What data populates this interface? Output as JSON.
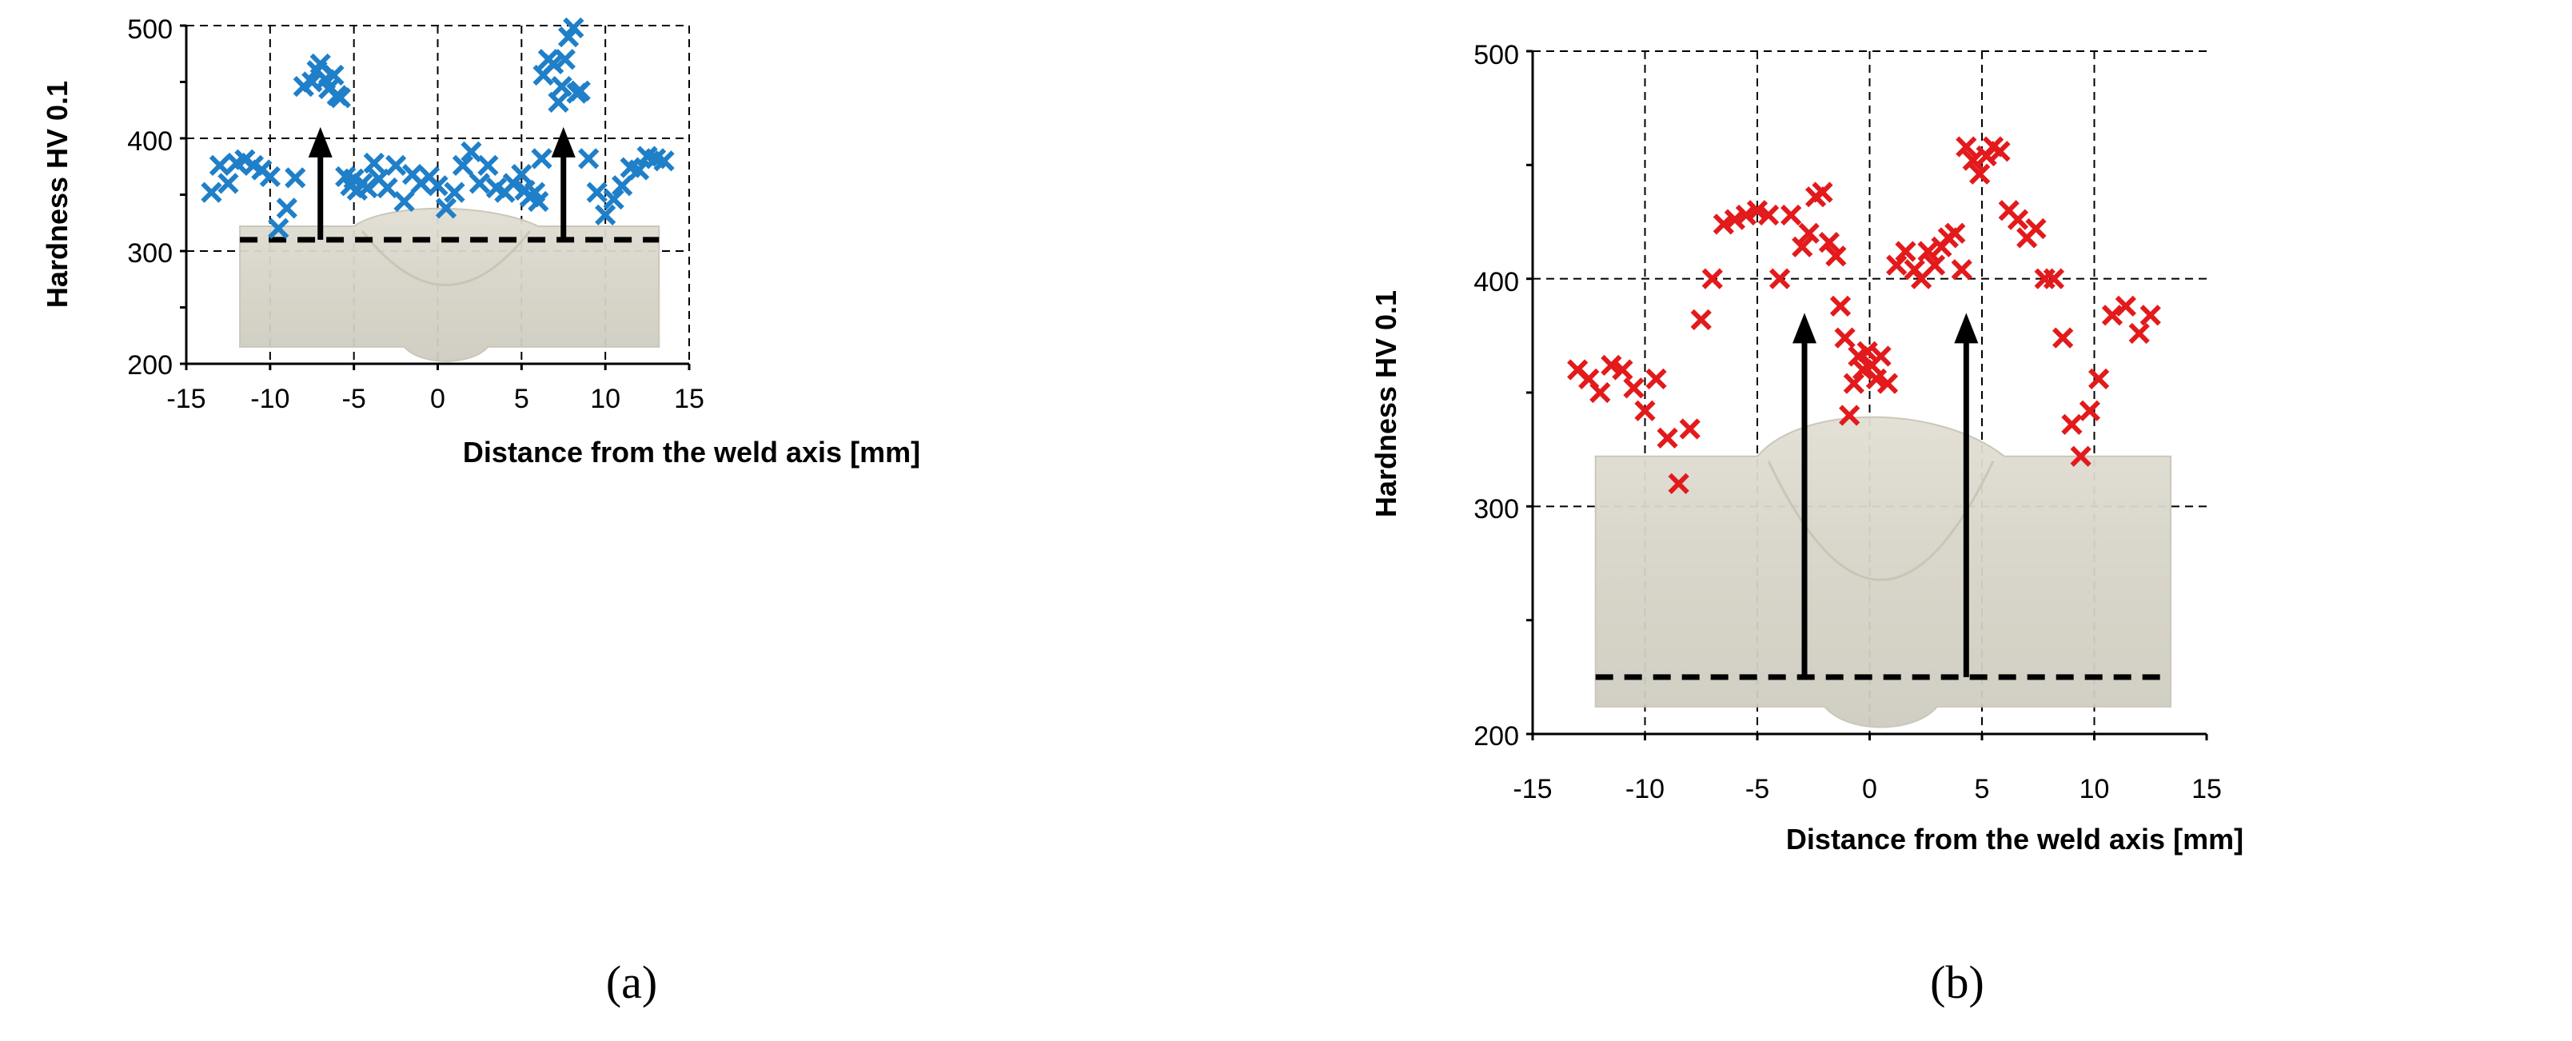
{
  "colors": {
    "series_a": "#1f7fc8",
    "series_b": "#e31a1c",
    "arrow": "#000000",
    "baseline": "#000000",
    "section": "#d9d6cc"
  },
  "chart_data": [
    {
      "type": "scatter",
      "panel_label": "(a)",
      "xlabel": "Distance from the weld axis [mm]",
      "ylabel": "Hardness  HV 0.1",
      "xlim": [
        -15,
        15
      ],
      "ylim": [
        200,
        500
      ],
      "xticks": [
        "-15",
        "-10",
        "-5",
        "0",
        "5",
        "10",
        "15"
      ],
      "yticks": [
        "200",
        "300",
        "400",
        "500"
      ],
      "grid": true,
      "baseline_hardness": 310,
      "arrows": [
        {
          "x": -7,
          "from": 310,
          "to": 410
        },
        {
          "x": 7.5,
          "from": 310,
          "to": 410
        }
      ],
      "series": [
        {
          "name": "Hardness (a)",
          "marker": "x",
          "points": [
            [
              -13.5,
              352
            ],
            [
              -13,
              376
            ],
            [
              -12.5,
              360
            ],
            [
              -12,
              378
            ],
            [
              -11.5,
              381
            ],
            [
              -11,
              376
            ],
            [
              -10.5,
              372
            ],
            [
              -10,
              366
            ],
            [
              -9.5,
              320
            ],
            [
              -9,
              338
            ],
            [
              -8.5,
              365
            ],
            [
              -8,
              446
            ],
            [
              -7.5,
              450
            ],
            [
              -7.2,
              460
            ],
            [
              -7,
              466
            ],
            [
              -6.7,
              452
            ],
            [
              -6.5,
              444
            ],
            [
              -6.2,
              456
            ],
            [
              -6,
              438
            ],
            [
              -5.8,
              436
            ],
            [
              -5.5,
              366
            ],
            [
              -5.2,
              358
            ],
            [
              -5,
              364
            ],
            [
              -4.8,
              354
            ],
            [
              -4.5,
              360
            ],
            [
              -4.2,
              356
            ],
            [
              -3.8,
              378
            ],
            [
              -3.5,
              364
            ],
            [
              -3,
              356
            ],
            [
              -2.5,
              376
            ],
            [
              -2,
              344
            ],
            [
              -1.5,
              368
            ],
            [
              -1,
              360
            ],
            [
              -0.5,
              366
            ],
            [
              0,
              358
            ],
            [
              0.5,
              338
            ],
            [
              1,
              352
            ],
            [
              1.5,
              376
            ],
            [
              2,
              388
            ],
            [
              2.5,
              360
            ],
            [
              3,
              376
            ],
            [
              3.5,
              356
            ],
            [
              4,
              352
            ],
            [
              4.5,
              360
            ],
            [
              5,
              368
            ],
            [
              5.2,
              354
            ],
            [
              5.5,
              348
            ],
            [
              5.8,
              352
            ],
            [
              6,
              344
            ],
            [
              6.2,
              382
            ],
            [
              6.3,
              456
            ],
            [
              6.6,
              470
            ],
            [
              6.9,
              466
            ],
            [
              7.2,
              432
            ],
            [
              7.4,
              446
            ],
            [
              7.6,
              470
            ],
            [
              7.8,
              490
            ],
            [
              8.1,
              498
            ],
            [
              8.3,
              440
            ],
            [
              8.5,
              442
            ],
            [
              9,
              382
            ],
            [
              9.5,
              352
            ],
            [
              10,
              332
            ],
            [
              10.5,
              346
            ],
            [
              11,
              358
            ],
            [
              11.5,
              374
            ],
            [
              12,
              372
            ],
            [
              12.5,
              384
            ],
            [
              13,
              382
            ],
            [
              13.5,
              380
            ]
          ]
        }
      ]
    },
    {
      "type": "scatter",
      "panel_label": "(b)",
      "xlabel": "Distance from the weld axis [mm]",
      "ylabel": "Hardness  HV 0.1",
      "xlim": [
        -15,
        15
      ],
      "ylim": [
        200,
        500
      ],
      "xticks": [
        "-15",
        "-10",
        "-5",
        "0",
        "5",
        "10",
        "15"
      ],
      "yticks": [
        "200",
        "300",
        "400",
        "500"
      ],
      "grid": true,
      "baseline_hardness": 225,
      "arrows": [
        {
          "x": -2.9,
          "from": 225,
          "to": 385
        },
        {
          "x": 4.3,
          "from": 225,
          "to": 385
        }
      ],
      "series": [
        {
          "name": "Hardness (b)",
          "marker": "x",
          "points": [
            [
              -13,
              360
            ],
            [
              -12.5,
              356
            ],
            [
              -12,
              350
            ],
            [
              -11.5,
              362
            ],
            [
              -11,
              360
            ],
            [
              -10.5,
              352
            ],
            [
              -10,
              342
            ],
            [
              -9.5,
              356
            ],
            [
              -9,
              330
            ],
            [
              -8.5,
              310
            ],
            [
              -8,
              334
            ],
            [
              -7.5,
              382
            ],
            [
              -7,
              400
            ],
            [
              -6.5,
              424
            ],
            [
              -6,
              426
            ],
            [
              -5.5,
              428
            ],
            [
              -5,
              430
            ],
            [
              -4.5,
              428
            ],
            [
              -4,
              400
            ],
            [
              -3.5,
              428
            ],
            [
              -3,
              414
            ],
            [
              -2.7,
              420
            ],
            [
              -2.4,
              436
            ],
            [
              -2.1,
              438
            ],
            [
              -1.8,
              416
            ],
            [
              -1.5,
              410
            ],
            [
              -1.3,
              388
            ],
            [
              -1.1,
              374
            ],
            [
              -0.9,
              340
            ],
            [
              -0.7,
              354
            ],
            [
              -0.5,
              366
            ],
            [
              -0.3,
              360
            ],
            [
              -0.1,
              368
            ],
            [
              0.1,
              362
            ],
            [
              0.3,
              356
            ],
            [
              0.5,
              366
            ],
            [
              0.8,
              354
            ],
            [
              1.2,
              406
            ],
            [
              1.6,
              412
            ],
            [
              2,
              404
            ],
            [
              2.3,
              400
            ],
            [
              2.6,
              412
            ],
            [
              2.9,
              406
            ],
            [
              3.2,
              414
            ],
            [
              3.5,
              418
            ],
            [
              3.8,
              420
            ],
            [
              4.1,
              404
            ],
            [
              4.3,
              458
            ],
            [
              4.6,
              452
            ],
            [
              4.9,
              446
            ],
            [
              5.2,
              454
            ],
            [
              5.5,
              458
            ],
            [
              5.8,
              456
            ],
            [
              6.2,
              430
            ],
            [
              6.6,
              426
            ],
            [
              7,
              418
            ],
            [
              7.4,
              422
            ],
            [
              7.8,
              400
            ],
            [
              8.2,
              400
            ],
            [
              8.6,
              374
            ],
            [
              9,
              336
            ],
            [
              9.4,
              322
            ],
            [
              9.8,
              342
            ],
            [
              10.2,
              356
            ],
            [
              10.8,
              384
            ],
            [
              11.4,
              388
            ],
            [
              12,
              376
            ],
            [
              12.5,
              384
            ]
          ]
        }
      ]
    }
  ]
}
